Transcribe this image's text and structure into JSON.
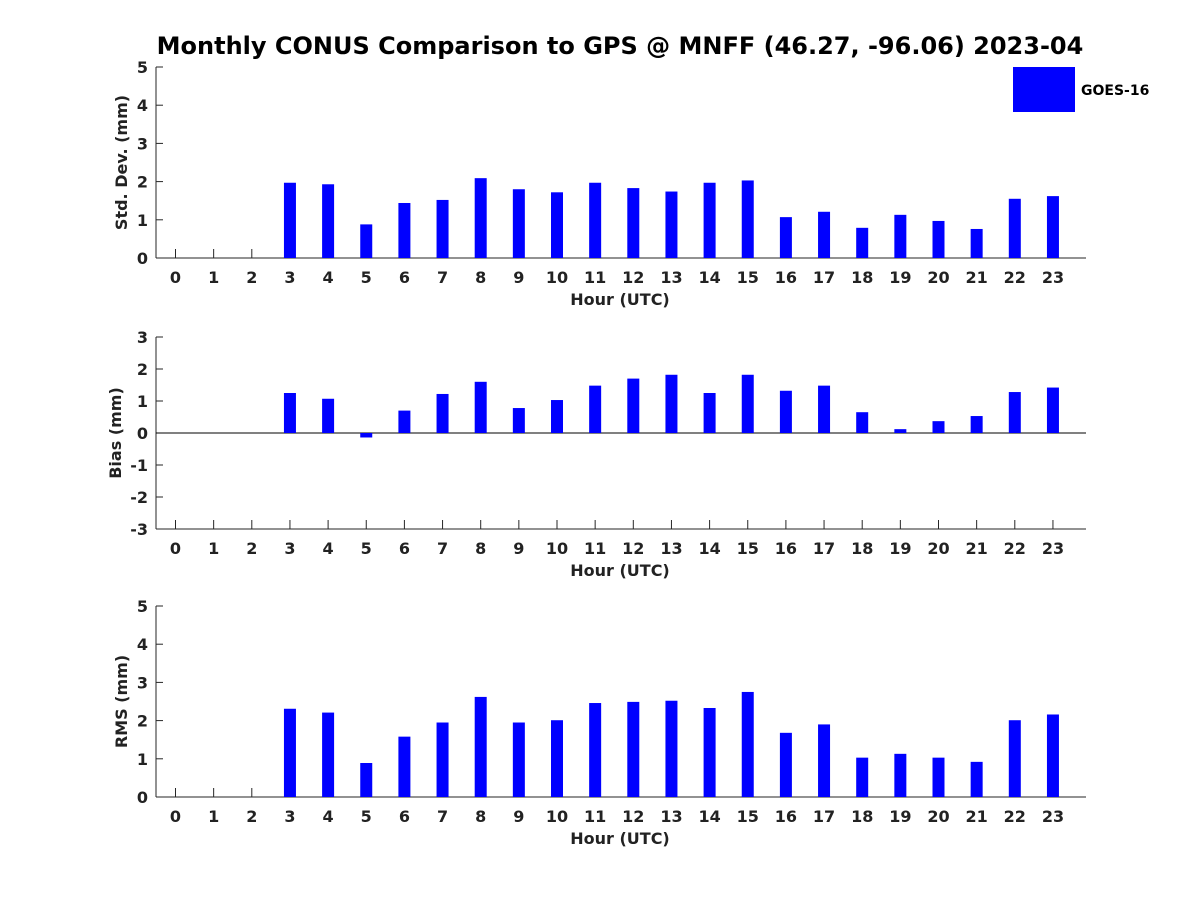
{
  "title": "Monthly CONUS Comparison to GPS @ MNFF (46.27, -96.06) 2023-04",
  "legend": {
    "label": "GOES-16",
    "color": "#0000ff"
  },
  "chart_data": [
    {
      "type": "bar",
      "name": "std-dev",
      "ylabel": "Std. Dev. (mm)",
      "xlabel": "Hour (UTC)",
      "ylim": [
        0,
        5
      ],
      "yticks": [
        "0",
        "1",
        "2",
        "3",
        "4",
        "5"
      ],
      "categories": [
        "0",
        "1",
        "2",
        "3",
        "4",
        "5",
        "6",
        "7",
        "8",
        "9",
        "10",
        "11",
        "12",
        "13",
        "14",
        "15",
        "16",
        "17",
        "18",
        "19",
        "20",
        "21",
        "22",
        "23"
      ],
      "values": [
        null,
        null,
        null,
        1.97,
        1.93,
        0.88,
        1.44,
        1.52,
        2.09,
        1.8,
        1.72,
        1.97,
        1.83,
        1.74,
        1.97,
        2.03,
        1.07,
        1.21,
        0.79,
        1.13,
        0.97,
        0.76,
        1.55,
        1.62
      ],
      "legend": "top-right"
    },
    {
      "type": "bar",
      "name": "bias",
      "ylabel": "Bias (mm)",
      "xlabel": "Hour (UTC)",
      "ylim": [
        -3,
        3
      ],
      "yticks": [
        "-3",
        "-2",
        "-1",
        "0",
        "1",
        "2",
        "3"
      ],
      "categories": [
        "0",
        "1",
        "2",
        "3",
        "4",
        "5",
        "6",
        "7",
        "8",
        "9",
        "10",
        "11",
        "12",
        "13",
        "14",
        "15",
        "16",
        "17",
        "18",
        "19",
        "20",
        "21",
        "22",
        "23"
      ],
      "values": [
        null,
        null,
        null,
        1.25,
        1.07,
        -0.14,
        0.7,
        1.22,
        1.6,
        0.78,
        1.03,
        1.48,
        1.7,
        1.82,
        1.25,
        1.82,
        1.32,
        1.48,
        0.65,
        0.12,
        0.37,
        0.53,
        1.28,
        1.42
      ]
    },
    {
      "type": "bar",
      "name": "rms",
      "ylabel": "RMS (mm)",
      "xlabel": "Hour (UTC)",
      "ylim": [
        0,
        5
      ],
      "yticks": [
        "0",
        "1",
        "2",
        "3",
        "4",
        "5"
      ],
      "categories": [
        "0",
        "1",
        "2",
        "3",
        "4",
        "5",
        "6",
        "7",
        "8",
        "9",
        "10",
        "11",
        "12",
        "13",
        "14",
        "15",
        "16",
        "17",
        "18",
        "19",
        "20",
        "21",
        "22",
        "23"
      ],
      "values": [
        null,
        null,
        null,
        2.31,
        2.21,
        0.89,
        1.58,
        1.95,
        2.62,
        1.95,
        2.01,
        2.46,
        2.49,
        2.52,
        2.33,
        2.75,
        1.68,
        1.9,
        1.03,
        1.13,
        1.03,
        0.92,
        2.01,
        2.16
      ]
    }
  ]
}
